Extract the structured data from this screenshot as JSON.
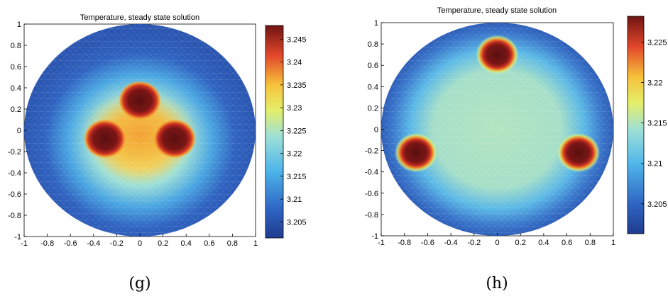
{
  "chart_data": [
    {
      "type": "heatmap",
      "title": "Temperature, steady state solution",
      "caption": "(g)",
      "xlim": [
        -1,
        1
      ],
      "ylim": [
        -1,
        1
      ],
      "xticks": [
        -1,
        -0.8,
        -0.6,
        -0.4,
        -0.2,
        0,
        0.2,
        0.4,
        0.6,
        0.8,
        1
      ],
      "yticks": [
        -1,
        -0.8,
        -0.6,
        -0.4,
        -0.2,
        0,
        0.2,
        0.4,
        0.6,
        0.8,
        1
      ],
      "domain": "circle of radius 1",
      "hot_spots": [
        {
          "x": 0,
          "y": 0.28,
          "r": 0.12
        },
        {
          "x": -0.3,
          "y": -0.08,
          "r": 0.12
        },
        {
          "x": 0.3,
          "y": -0.08,
          "r": 0.12
        }
      ],
      "colorbar": {
        "min": 3.2015,
        "max": 3.248,
        "ticks": [
          3.205,
          3.21,
          3.215,
          3.22,
          3.225,
          3.23,
          3.235,
          3.24,
          3.245
        ]
      },
      "grid": false
    },
    {
      "type": "heatmap",
      "title": "Temperature, steady state solution",
      "caption": "(h)",
      "xlim": [
        -1,
        1
      ],
      "ylim": [
        -1,
        1
      ],
      "xticks": [
        -1,
        -0.8,
        -0.6,
        -0.4,
        -0.2,
        0,
        0.2,
        0.4,
        0.6,
        0.8,
        1
      ],
      "yticks": [
        -1,
        -0.8,
        -0.6,
        -0.4,
        -0.2,
        0,
        0.2,
        0.4,
        0.6,
        0.8,
        1
      ],
      "domain": "circle of radius 1",
      "hot_spots": [
        {
          "x": 0,
          "y": 0.7,
          "r": 0.12
        },
        {
          "x": -0.7,
          "y": -0.22,
          "r": 0.12
        },
        {
          "x": 0.7,
          "y": -0.22,
          "r": 0.12
        }
      ],
      "colorbar": {
        "min": 3.2013,
        "max": 3.2282,
        "ticks": [
          3.205,
          3.21,
          3.215,
          3.22,
          3.225
        ]
      },
      "grid": false
    }
  ]
}
